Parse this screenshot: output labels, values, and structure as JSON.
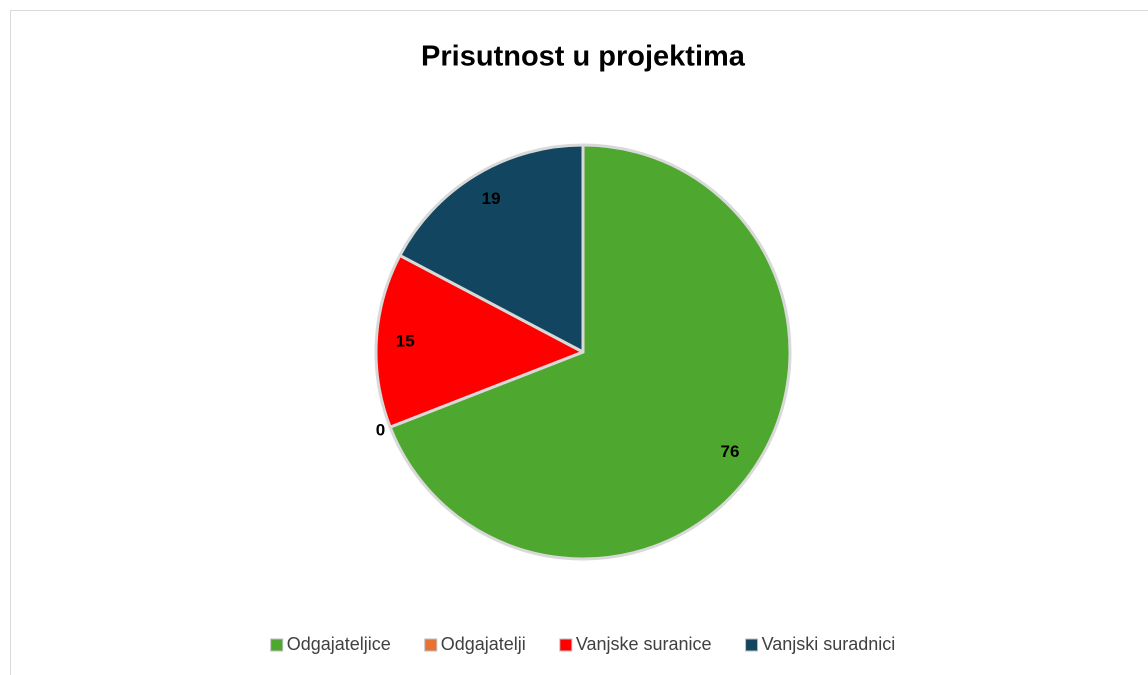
{
  "chart_data": {
    "type": "pie",
    "title": "Prisutnost u projektima",
    "categories": [
      "Odgajateljice",
      "Odgajatelji",
      "Vanjske suranice",
      "Vanjski suradnici"
    ],
    "values": [
      76,
      0,
      15,
      19
    ],
    "colors": [
      "#4ea72e",
      "#e97132",
      "#ff0000",
      "#124660"
    ],
    "legend": "bottom"
  }
}
